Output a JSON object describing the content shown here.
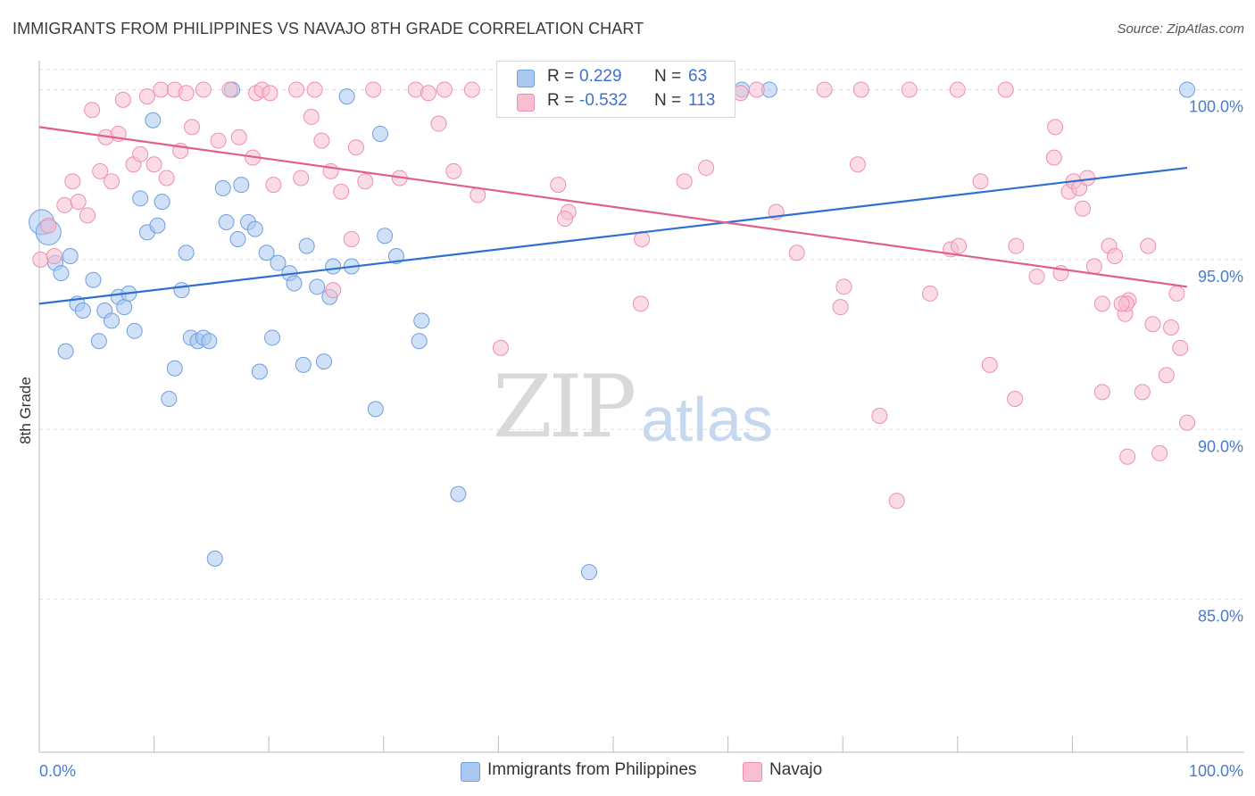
{
  "title": "IMMIGRANTS FROM PHILIPPINES VS NAVAJO 8TH GRADE CORRELATION CHART",
  "source": "Source: ZipAtlas.com",
  "watermark": {
    "zip": "ZIP",
    "atlas": "atlas"
  },
  "legend": {
    "r_label": "R =",
    "n_label": "N =",
    "entries": [
      {
        "name": "Immigrants from Philippines",
        "r": "0.229",
        "n": "63",
        "fill": "#aac8f0",
        "stroke": "#6f9ee0"
      },
      {
        "name": "Navajo",
        "r": "-0.532",
        "n": "113",
        "fill": "#f8bfd0",
        "stroke": "#ee8fae"
      }
    ]
  },
  "chart_data": {
    "type": "scatter",
    "ylabel": "8th Grade",
    "xlim": [
      0,
      100
    ],
    "ylim": [
      80.5,
      100.8
    ],
    "x_tick_labels": [
      {
        "value": 0,
        "label": "0.0%"
      },
      {
        "value": 100,
        "label": "100.0%"
      }
    ],
    "y_ticks": [
      {
        "value": 100,
        "label": "100.0%"
      },
      {
        "value": 95,
        "label": "95.0%"
      },
      {
        "value": 90,
        "label": "90.0%"
      },
      {
        "value": 85,
        "label": "85.0%"
      }
    ],
    "x_minor_ticks": [
      0,
      10,
      20,
      30,
      40,
      50,
      60,
      70,
      80,
      90,
      100
    ],
    "series": [
      {
        "name": "Immigrants from Philippines",
        "color": "#6f9ee0",
        "fill": "#aac8f0",
        "line_color": "#2e6fd0",
        "trend": [
          [
            0,
            93.7
          ],
          [
            100,
            97.7
          ]
        ],
        "points": [
          [
            0.2,
            96.1
          ],
          [
            0.8,
            95.8
          ],
          [
            1.4,
            94.9
          ],
          [
            1.9,
            94.6
          ],
          [
            2.3,
            92.3
          ],
          [
            2.7,
            95.1
          ],
          [
            3.3,
            93.7
          ],
          [
            3.8,
            93.5
          ],
          [
            4.7,
            94.4
          ],
          [
            5.2,
            92.6
          ],
          [
            5.7,
            93.5
          ],
          [
            6.3,
            93.2
          ],
          [
            6.9,
            93.9
          ],
          [
            7.4,
            93.6
          ],
          [
            7.8,
            94.0
          ],
          [
            8.3,
            92.9
          ],
          [
            8.8,
            96.8
          ],
          [
            9.4,
            95.8
          ],
          [
            9.9,
            99.1
          ],
          [
            10.3,
            96.0
          ],
          [
            10.7,
            96.7
          ],
          [
            11.3,
            90.9
          ],
          [
            11.8,
            91.8
          ],
          [
            12.4,
            94.1
          ],
          [
            12.8,
            95.2
          ],
          [
            13.2,
            92.7
          ],
          [
            13.8,
            92.6
          ],
          [
            14.3,
            92.7
          ],
          [
            14.8,
            92.6
          ],
          [
            15.3,
            86.2
          ],
          [
            16.0,
            97.1
          ],
          [
            16.3,
            96.1
          ],
          [
            16.8,
            100.0
          ],
          [
            17.3,
            95.6
          ],
          [
            17.6,
            97.2
          ],
          [
            18.2,
            96.1
          ],
          [
            18.8,
            95.9
          ],
          [
            19.2,
            91.7
          ],
          [
            19.8,
            95.2
          ],
          [
            20.3,
            92.7
          ],
          [
            20.8,
            94.9
          ],
          [
            21.8,
            94.6
          ],
          [
            22.2,
            94.3
          ],
          [
            23.0,
            91.9
          ],
          [
            23.3,
            95.4
          ],
          [
            24.2,
            94.2
          ],
          [
            24.8,
            92.0
          ],
          [
            25.3,
            93.9
          ],
          [
            25.6,
            94.8
          ],
          [
            27.2,
            94.8
          ],
          [
            26.8,
            99.8
          ],
          [
            29.3,
            90.6
          ],
          [
            29.7,
            98.7
          ],
          [
            30.1,
            95.7
          ],
          [
            31.1,
            95.1
          ],
          [
            33.3,
            93.2
          ],
          [
            33.1,
            92.6
          ],
          [
            36.5,
            88.1
          ],
          [
            47.9,
            85.8
          ],
          [
            60.0,
            100.0
          ],
          [
            61.2,
            100.0
          ],
          [
            63.6,
            100.0
          ],
          [
            100.0,
            100.0
          ]
        ]
      },
      {
        "name": "Navajo",
        "color": "#ee8fae",
        "fill": "#f8bfd0",
        "line_color": "#e0608a",
        "trend": [
          [
            0,
            98.9
          ],
          [
            100,
            94.2
          ]
        ],
        "points": [
          [
            0.1,
            95.0
          ],
          [
            0.8,
            96.0
          ],
          [
            1.3,
            95.1
          ],
          [
            2.2,
            96.6
          ],
          [
            2.9,
            97.3
          ],
          [
            3.4,
            96.7
          ],
          [
            4.2,
            96.3
          ],
          [
            4.6,
            99.4
          ],
          [
            5.3,
            97.6
          ],
          [
            5.8,
            98.6
          ],
          [
            6.3,
            97.3
          ],
          [
            6.9,
            98.7
          ],
          [
            7.3,
            99.7
          ],
          [
            8.2,
            97.8
          ],
          [
            8.8,
            98.1
          ],
          [
            9.4,
            99.8
          ],
          [
            10.0,
            97.8
          ],
          [
            10.6,
            100.0
          ],
          [
            11.1,
            97.4
          ],
          [
            11.8,
            100.0
          ],
          [
            12.3,
            98.2
          ],
          [
            12.8,
            99.9
          ],
          [
            13.3,
            98.9
          ],
          [
            14.3,
            100.0
          ],
          [
            15.6,
            98.5
          ],
          [
            16.6,
            100.0
          ],
          [
            17.4,
            98.6
          ],
          [
            18.6,
            98.0
          ],
          [
            18.9,
            99.9
          ],
          [
            19.4,
            100.0
          ],
          [
            20.1,
            99.9
          ],
          [
            20.4,
            97.2
          ],
          [
            22.4,
            100.0
          ],
          [
            22.8,
            97.4
          ],
          [
            24.0,
            100.0
          ],
          [
            23.7,
            99.2
          ],
          [
            25.6,
            94.1
          ],
          [
            24.6,
            98.5
          ],
          [
            25.4,
            97.6
          ],
          [
            26.3,
            97.0
          ],
          [
            27.2,
            95.6
          ],
          [
            27.6,
            98.3
          ],
          [
            28.4,
            97.3
          ],
          [
            29.1,
            100.0
          ],
          [
            31.4,
            97.4
          ],
          [
            32.8,
            100.0
          ],
          [
            33.9,
            99.9
          ],
          [
            34.8,
            99.0
          ],
          [
            35.3,
            100.0
          ],
          [
            36.1,
            97.6
          ],
          [
            37.7,
            100.0
          ],
          [
            38.2,
            96.9
          ],
          [
            40.2,
            92.4
          ],
          [
            43.6,
            100.0
          ],
          [
            45.2,
            97.2
          ],
          [
            46.1,
            96.4
          ],
          [
            45.8,
            96.2
          ],
          [
            47.6,
            99.9
          ],
          [
            51.6,
            100.0
          ],
          [
            52.5,
            95.6
          ],
          [
            52.4,
            93.7
          ],
          [
            54.0,
            100.0
          ],
          [
            56.2,
            97.3
          ],
          [
            58.1,
            97.7
          ],
          [
            61.1,
            99.9
          ],
          [
            62.5,
            100.0
          ],
          [
            64.2,
            96.4
          ],
          [
            66.0,
            95.2
          ],
          [
            68.4,
            100.0
          ],
          [
            69.8,
            93.6
          ],
          [
            70.1,
            94.2
          ],
          [
            71.6,
            100.0
          ],
          [
            71.3,
            97.8
          ],
          [
            73.2,
            90.4
          ],
          [
            74.7,
            87.9
          ],
          [
            75.8,
            100.0
          ],
          [
            77.6,
            94.0
          ],
          [
            79.4,
            95.3
          ],
          [
            80.1,
            95.4
          ],
          [
            82.0,
            97.3
          ],
          [
            82.8,
            91.9
          ],
          [
            84.2,
            100.0
          ],
          [
            85.1,
            95.4
          ],
          [
            85.0,
            90.9
          ],
          [
            86.9,
            94.5
          ],
          [
            88.5,
            98.9
          ],
          [
            89.7,
            97.0
          ],
          [
            88.4,
            98.0
          ],
          [
            89.0,
            94.6
          ],
          [
            90.1,
            97.3
          ],
          [
            90.6,
            97.1
          ],
          [
            90.9,
            96.5
          ],
          [
            91.3,
            97.4
          ],
          [
            91.9,
            94.8
          ],
          [
            92.6,
            93.7
          ],
          [
            92.6,
            91.1
          ],
          [
            93.2,
            95.4
          ],
          [
            93.7,
            95.1
          ],
          [
            94.6,
            93.4
          ],
          [
            94.9,
            93.8
          ],
          [
            94.7,
            93.7
          ],
          [
            94.8,
            89.2
          ],
          [
            96.1,
            91.1
          ],
          [
            97.0,
            93.1
          ],
          [
            96.6,
            95.4
          ],
          [
            97.6,
            89.3
          ],
          [
            98.2,
            91.6
          ],
          [
            98.6,
            93.0
          ],
          [
            99.1,
            94.0
          ],
          [
            99.4,
            92.4
          ],
          [
            100.0,
            90.2
          ],
          [
            94.3,
            93.7
          ],
          [
            80.0,
            100.0
          ]
        ]
      }
    ]
  }
}
